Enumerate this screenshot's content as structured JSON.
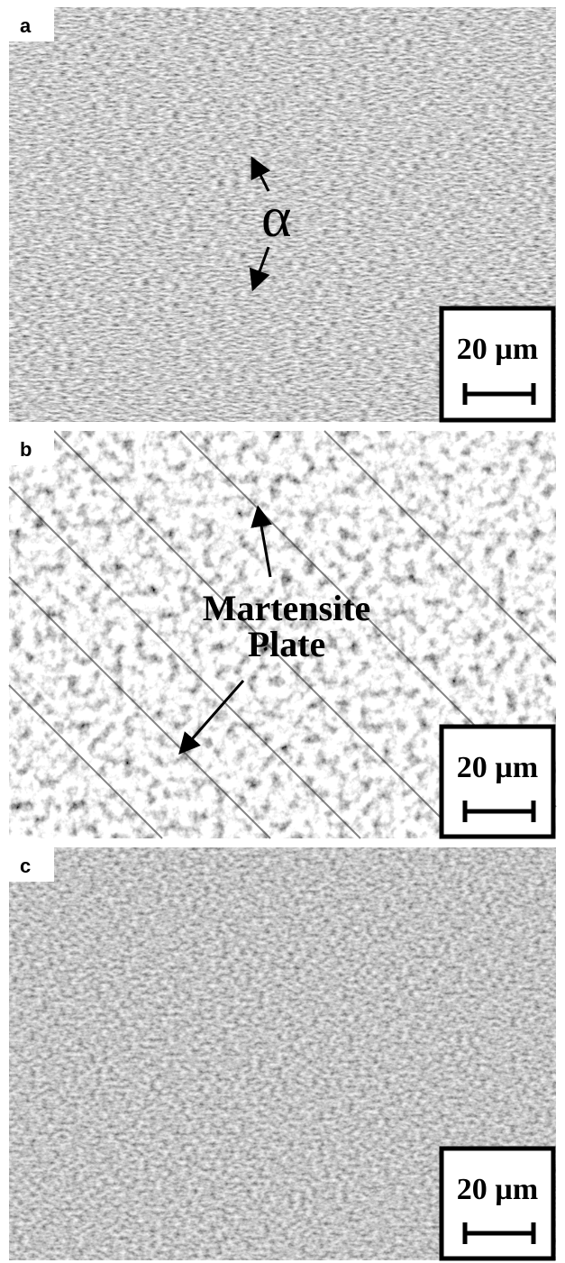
{
  "panels": [
    {
      "label": "a",
      "annotations": [
        "α"
      ],
      "scale_bar": "20 µm"
    },
    {
      "label": "b",
      "annotations": [
        "Martensite",
        "Plate"
      ],
      "scale_bar": "20 µm"
    },
    {
      "label": "c",
      "annotations": [],
      "scale_bar": "20 µm"
    }
  ]
}
